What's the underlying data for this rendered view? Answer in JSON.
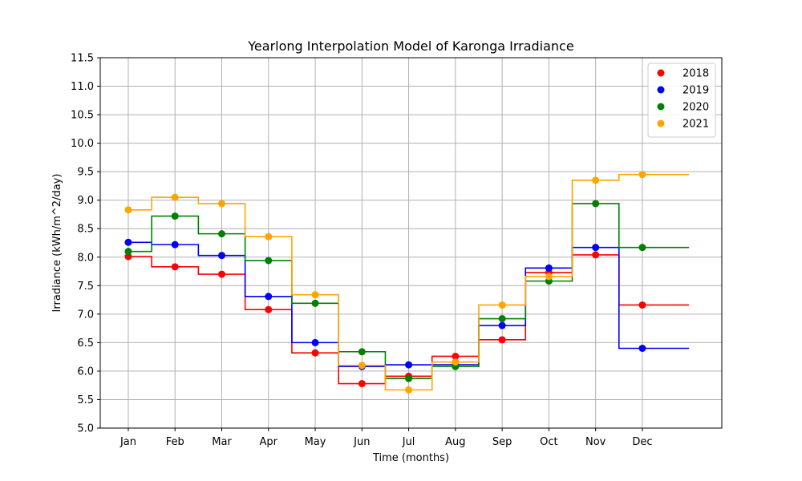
{
  "chart_data": {
    "type": "line",
    "title": "Yearlong Interpolation Model of Karonga Irradiance",
    "xlabel": "Time (months)",
    "ylabel": "Irradiance (kWh/m^2/day)",
    "categories": [
      "Jan",
      "Feb",
      "Mar",
      "Apr",
      "May",
      "Jun",
      "Jul",
      "Aug",
      "Sep",
      "Oct",
      "Nov",
      "Dec"
    ],
    "x_range": [
      0.4,
      13.7
    ],
    "ylim": [
      5.0,
      11.5
    ],
    "yticks": [
      5.0,
      5.5,
      6.0,
      6.5,
      7.0,
      7.5,
      8.0,
      8.5,
      9.0,
      9.5,
      10.0,
      10.5,
      11.0,
      11.5
    ],
    "ytick_labels": [
      "5.0",
      "5.5",
      "6.0",
      "6.5",
      "7.0",
      "7.5",
      "8.0",
      "8.5",
      "9.0",
      "9.5",
      "10.0",
      "10.5",
      "11.0",
      "11.5"
    ],
    "interpolation": "step (nearest)",
    "x_extent": [
      1,
      13
    ],
    "grid": true,
    "legend_position": "top-right",
    "series": [
      {
        "name": "2018",
        "color": "#ff0000",
        "values": [
          8.01,
          7.83,
          7.7,
          7.08,
          6.32,
          5.78,
          5.91,
          6.26,
          6.55,
          7.73,
          8.04,
          7.16
        ]
      },
      {
        "name": "2019",
        "color": "#0000ff",
        "values": [
          8.26,
          8.22,
          8.03,
          7.31,
          6.5,
          6.08,
          6.11,
          6.11,
          6.8,
          7.81,
          8.17,
          6.4
        ]
      },
      {
        "name": "2020",
        "color": "#008000",
        "values": [
          8.1,
          8.72,
          8.41,
          7.94,
          7.19,
          6.34,
          5.87,
          6.08,
          6.92,
          7.58,
          8.94,
          8.17
        ]
      },
      {
        "name": "2021",
        "color": "#ffa500",
        "values": [
          8.83,
          9.05,
          8.94,
          8.36,
          7.34,
          6.1,
          5.67,
          6.16,
          7.16,
          7.66,
          9.35,
          9.45
        ]
      }
    ]
  }
}
